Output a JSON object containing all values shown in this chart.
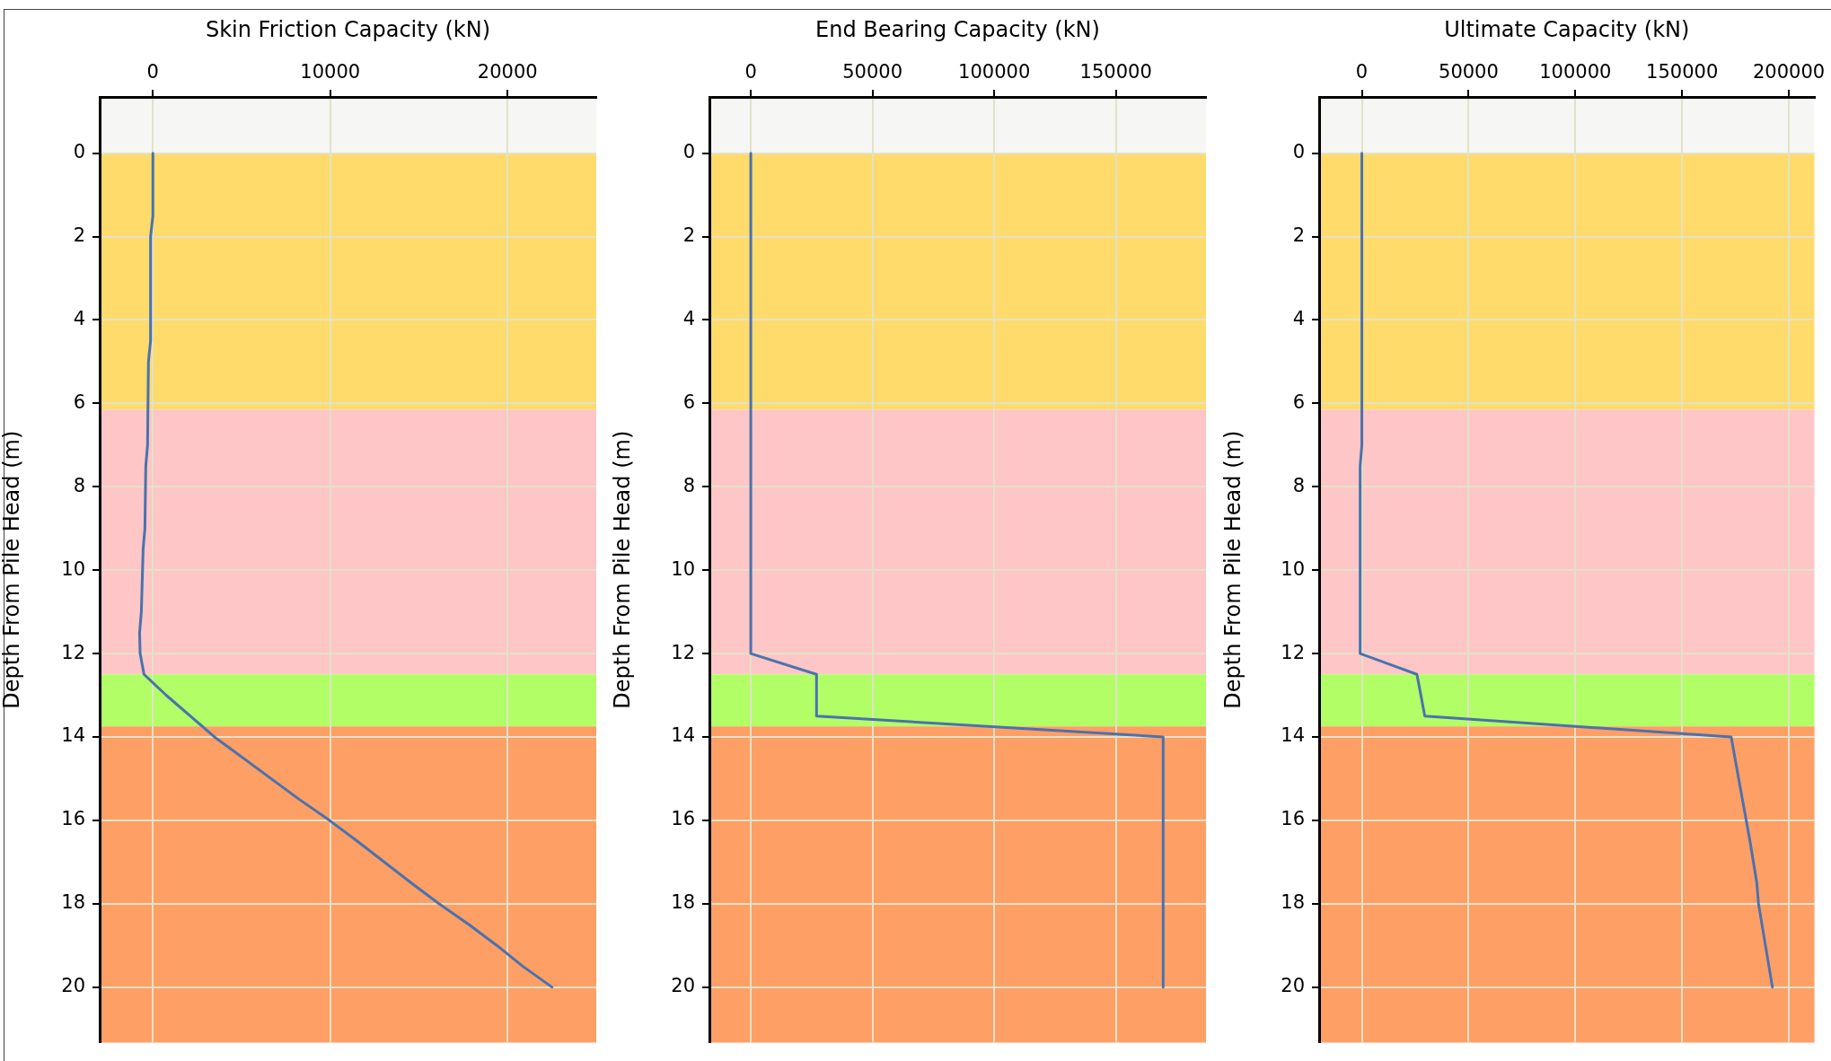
{
  "chart_data": [
    {
      "type": "line",
      "xlabel": "Skin Friction Capacity (kN)",
      "ylabel": "Depth From Pile Head (m)",
      "xlim": [
        -3000,
        25000
      ],
      "xticks": [
        0,
        10000,
        20000
      ],
      "ylim": [
        21.33,
        -1.35
      ],
      "yticks": [
        0,
        2,
        4,
        6,
        8,
        10,
        12,
        14,
        16,
        18,
        20
      ],
      "grid": true,
      "marker": "none",
      "series": [
        {
          "color": "#4a72ae",
          "x": [
            0,
            0,
            -130,
            -130,
            -250,
            -300,
            -400,
            -450,
            -550,
            -650,
            -750,
            -720,
            -500,
            750,
            3470,
            8260,
            9950,
            11520,
            14560,
            16130,
            17820,
            19390,
            20850,
            22500
          ],
          "values": [
            0,
            1.5,
            2,
            4.5,
            5,
            7,
            7.5,
            9,
            9.5,
            11,
            11.5,
            12,
            12.5,
            13,
            14,
            15.5,
            16,
            16.5,
            17.5,
            18,
            18.5,
            19,
            19.5,
            20
          ]
        }
      ],
      "bands": [
        {
          "axis": "y",
          "from": -1.35,
          "to": 0,
          "color": "#f6f6f4"
        },
        {
          "axis": "y",
          "from": 0,
          "to": 6.15,
          "color": "#fedb6b"
        },
        {
          "axis": "y",
          "from": 6.15,
          "to": 12.5,
          "color": "#fec6c6"
        },
        {
          "axis": "y",
          "from": 12.5,
          "to": 13.75,
          "color": "#b2fe66"
        },
        {
          "axis": "y",
          "from": 13.75,
          "to": 21.33,
          "color": "#fe9f66"
        }
      ]
    },
    {
      "type": "line",
      "xlabel": "End Bearing Capacity (kN)",
      "ylabel": "Depth From Pile Head (m)",
      "xlim": [
        -17000,
        187000
      ],
      "xticks": [
        0,
        50000,
        100000,
        150000
      ],
      "ylim": [
        21.33,
        -1.35
      ],
      "yticks": [
        0,
        2,
        4,
        6,
        8,
        10,
        12,
        14,
        16,
        18,
        20
      ],
      "grid": true,
      "marker": "none",
      "series": [
        {
          "color": "#4a72ae",
          "x": [
            0,
            0,
            27000,
            27000,
            169400,
            169400
          ],
          "values": [
            0,
            12,
            12.5,
            13.5,
            14,
            20
          ]
        }
      ],
      "bands": [
        {
          "axis": "y",
          "from": -1.35,
          "to": 0,
          "color": "#f6f6f4"
        },
        {
          "axis": "y",
          "from": 0,
          "to": 6.15,
          "color": "#fedb6b"
        },
        {
          "axis": "y",
          "from": 6.15,
          "to": 12.5,
          "color": "#fec6c6"
        },
        {
          "axis": "y",
          "from": 12.5,
          "to": 13.75,
          "color": "#b2fe66"
        },
        {
          "axis": "y",
          "from": 13.75,
          "to": 21.33,
          "color": "#fe9f66"
        }
      ]
    },
    {
      "type": "line",
      "xlabel": "Ultimate Capacity (kN)",
      "ylabel": "Depth From Pile Head (m)",
      "xlim": [
        -20000,
        212000
      ],
      "xticks": [
        0,
        50000,
        100000,
        150000,
        200000
      ],
      "ylim": [
        21.33,
        -1.35
      ],
      "yticks": [
        0,
        2,
        4,
        6,
        8,
        10,
        12,
        14,
        16,
        18,
        20
      ],
      "grid": true,
      "marker": "none",
      "series": [
        {
          "color": "#4a72ae",
          "x": [
            0,
            0,
            -800,
            -800,
            25800,
            29500,
            173000,
            176500,
            181800,
            185000,
            185800,
            192300
          ],
          "values": [
            0,
            7,
            7.5,
            12,
            12.5,
            13.5,
            14,
            15,
            16.5,
            17.5,
            18,
            20
          ]
        }
      ],
      "bands": [
        {
          "axis": "y",
          "from": -1.35,
          "to": 0,
          "color": "#f6f6f4"
        },
        {
          "axis": "y",
          "from": 0,
          "to": 6.15,
          "color": "#fedb6b"
        },
        {
          "axis": "y",
          "from": 6.15,
          "to": 12.5,
          "color": "#fec6c6"
        },
        {
          "axis": "y",
          "from": 12.5,
          "to": 13.75,
          "color": "#b2fe66"
        },
        {
          "axis": "y",
          "from": 13.75,
          "to": 21.33,
          "color": "#fe9f66"
        }
      ]
    }
  ]
}
